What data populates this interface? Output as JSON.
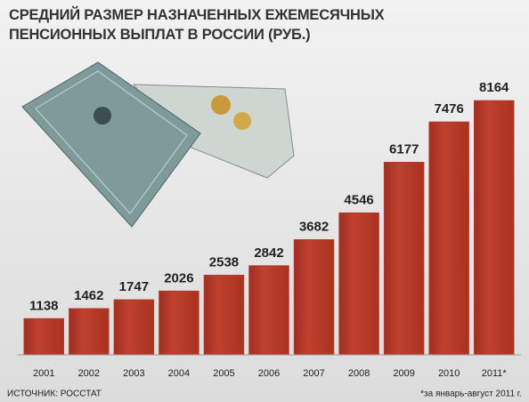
{
  "chart_data": {
    "type": "bar",
    "title": "СРЕДНИЙ РАЗМЕР НАЗНАЧЕННЫХ ЕЖЕМЕСЯЧНЫХ ПЕНСИОННЫХ ВЫПЛАТ В РОССИИ (РУБ.)",
    "categories": [
      "2001",
      "2002",
      "2003",
      "2004",
      "2005",
      "2006",
      "2007",
      "2008",
      "2009",
      "2010",
      "2011*"
    ],
    "values": [
      1138,
      1462,
      1747,
      2026,
      2538,
      2842,
      3682,
      4546,
      6177,
      7476,
      8164
    ],
    "color": "#b63a2c",
    "ylim": [
      0,
      9000
    ],
    "source": "ИСТОЧНИК: РОССТАТ",
    "note": "*за январь-август 2011 г."
  }
}
